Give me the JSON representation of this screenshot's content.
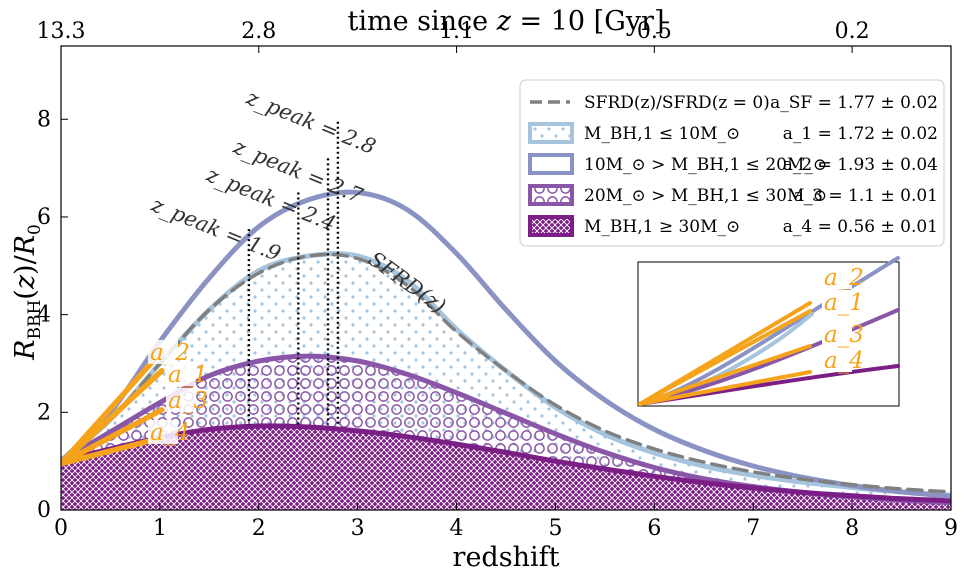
{
  "chart_data": {
    "type": "line",
    "xlabel": "redshift",
    "ylabel": "R_BBH(z)/R_0",
    "top_xlabel": "time since z = 10 [Gyr]",
    "xlim": [
      0,
      9
    ],
    "ylim": [
      0,
      9.5
    ],
    "x_ticks": [
      0,
      1,
      2,
      3,
      4,
      5,
      6,
      7,
      8,
      9
    ],
    "x_tick_labels": [
      "0",
      "1",
      "2",
      "3",
      "4",
      "5",
      "6",
      "7",
      "8",
      "9"
    ],
    "y_ticks": [
      0,
      2,
      4,
      6,
      8
    ],
    "y_tick_labels": [
      "0",
      "2",
      "4",
      "6",
      "8"
    ],
    "top_ticks": [
      0,
      2,
      4,
      6,
      8
    ],
    "top_tick_labels": [
      "13.3",
      "2.8",
      "1.1",
      "0.5",
      "0.2"
    ],
    "x": [
      0,
      0.5,
      1,
      1.5,
      2,
      2.5,
      3,
      3.5,
      4,
      4.5,
      5,
      5.5,
      6,
      6.5,
      7,
      7.5,
      8,
      8.5,
      9
    ],
    "series": [
      {
        "name": "SFRD(z)/SFRD(z = 0)",
        "style": "dashed",
        "color": "#808080",
        "values": [
          1.0,
          1.85,
          3.0,
          4.1,
          4.85,
          5.2,
          5.15,
          4.6,
          3.65,
          2.85,
          2.15,
          1.62,
          1.25,
          0.98,
          0.78,
          0.63,
          0.52,
          0.43,
          0.37
        ]
      },
      {
        "name": "M_BH,1 ≤ 10M_⊙",
        "style": "solid-dots",
        "color": "#a6c4dd",
        "values": [
          1.0,
          1.85,
          3.0,
          4.1,
          4.9,
          5.2,
          5.2,
          4.7,
          3.7,
          2.85,
          2.1,
          1.55,
          1.17,
          0.9,
          0.71,
          0.57,
          0.46,
          0.37,
          0.3
        ]
      },
      {
        "name": "10M_⊙ > M_BH,1 ≤ 20M_⊙",
        "style": "solid",
        "color": "#8b93c4",
        "values": [
          1.0,
          2.0,
          3.45,
          4.75,
          5.8,
          6.35,
          6.5,
          6.15,
          5.25,
          4.1,
          3.05,
          2.25,
          1.65,
          1.22,
          0.9,
          0.67,
          0.5,
          0.37,
          0.28
        ]
      },
      {
        "name": "20M_⊙ > M_BH,1 ≤ 30M_⊙",
        "style": "solid-circles",
        "color": "#8a56a8",
        "values": [
          1.0,
          1.6,
          2.2,
          2.75,
          3.05,
          3.15,
          3.05,
          2.78,
          2.4,
          1.98,
          1.56,
          1.18,
          0.87,
          0.64,
          0.48,
          0.36,
          0.27,
          0.2,
          0.15
        ]
      },
      {
        "name": "M_BH,1 ≥ 30M_⊙",
        "style": "solid-crosshatch",
        "color": "#7b1e85",
        "values": [
          1.0,
          1.25,
          1.48,
          1.65,
          1.72,
          1.7,
          1.62,
          1.5,
          1.35,
          1.18,
          1.0,
          0.84,
          0.69,
          0.56,
          0.45,
          0.36,
          0.29,
          0.23,
          0.19
        ]
      }
    ],
    "fits": [
      {
        "name": "a_SF",
        "value": "1.77",
        "err": "0.02"
      },
      {
        "name": "a_1",
        "value": "1.72",
        "err": "0.02"
      },
      {
        "name": "a_2",
        "value": "1.93",
        "err": "0.04"
      },
      {
        "name": "a_3",
        "value": "1.1",
        "err": "0.01"
      },
      {
        "name": "a_4",
        "value": "0.56",
        "err": "0.01"
      }
    ],
    "peaks": [
      {
        "z": 1.9,
        "label": "z_peak = 1.9"
      },
      {
        "z": 2.4,
        "label": "z_peak = 2.4"
      },
      {
        "z": 2.7,
        "label": "z_peak = 2.7"
      },
      {
        "z": 2.8,
        "label": "z_peak = 2.8"
      }
    ],
    "annotation": "SFRD(z)",
    "legend_position": "top-right",
    "inset": "zoom of low-redshift power-law fits a_1–a_4"
  }
}
